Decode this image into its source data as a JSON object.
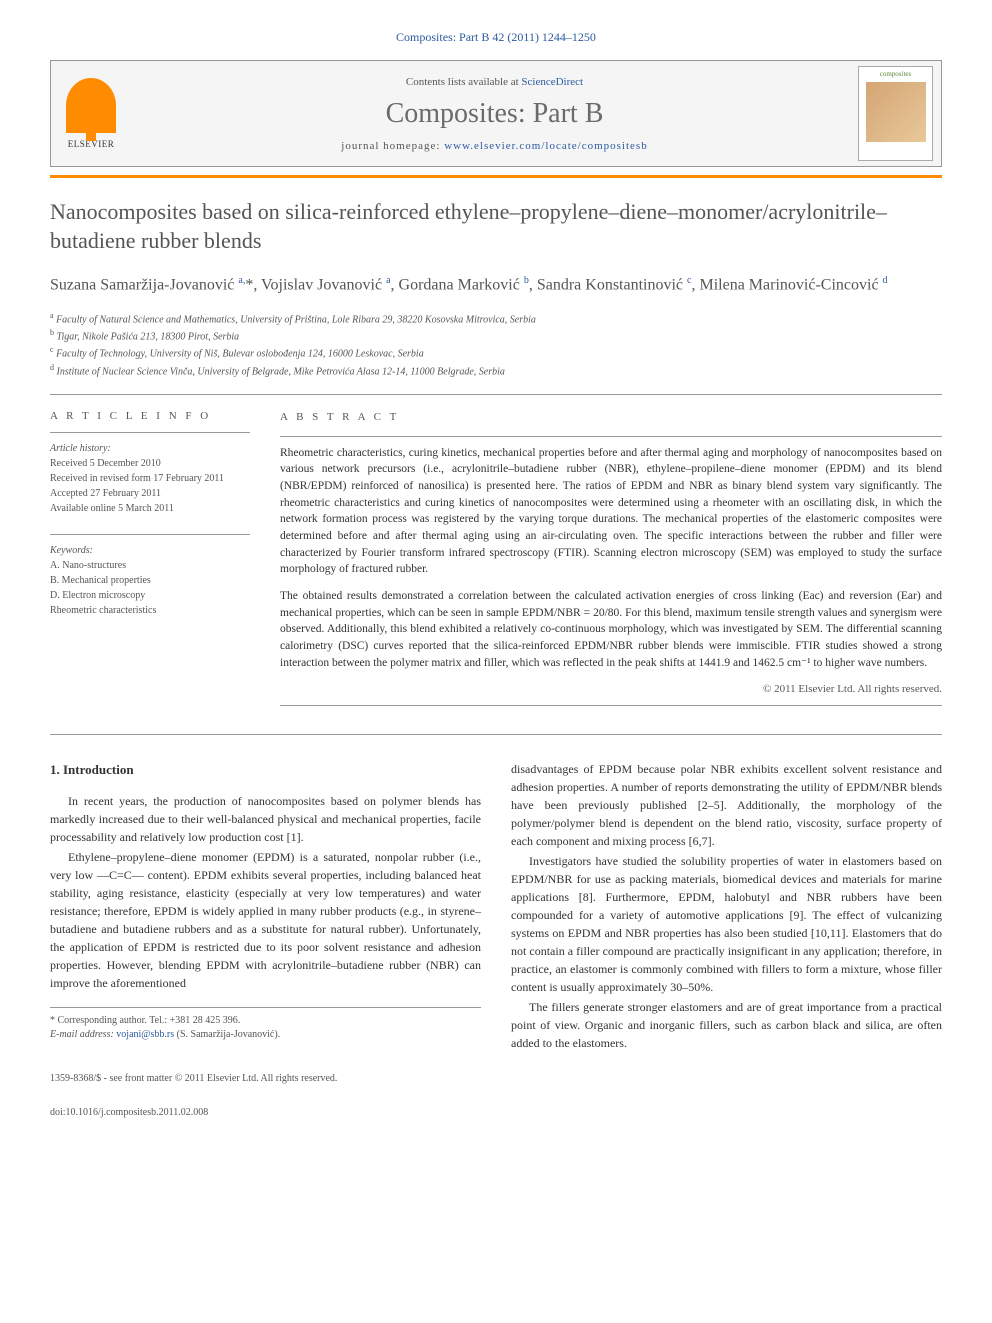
{
  "header": {
    "citation": "Composites: Part B 42 (2011) 1244–1250",
    "contents_prefix": "Contents lists available at ",
    "contents_link": "ScienceDirect",
    "journal_name": "Composites: Part B",
    "homepage_prefix": "journal homepage: ",
    "homepage_url": "www.elsevier.com/locate/compositesb",
    "publisher": "ELSEVIER",
    "cover_label": "composites"
  },
  "article": {
    "title": "Nanocomposites based on silica-reinforced ethylene–propylene–diene–monomer/acrylonitrile–butadiene rubber blends",
    "authors_html": "Suzana Samaržija-Jovanović <sup>a,</sup>*, Vojislav Jovanović <sup>a</sup>, Gordana Marković <sup>b</sup>, Sandra Konstantinović <sup>c</sup>, Milena Marinović-Cincović <sup>d</sup>",
    "affiliations": [
      "a Faculty of Natural Science and Mathematics, University of Priština, Lole Ribara 29, 38220 Kosovska Mitrovica, Serbia",
      "b Tigar, Nikole Pašića 213, 18300 Pirot, Serbia",
      "c Faculty of Technology, University of Niš, Bulevar oslobođenja 124, 16000 Leskovac, Serbia",
      "d Institute of Nuclear Science Vinča, University of Belgrade, Mike Petrovića Alasa 12-14, 11000 Belgrade, Serbia"
    ]
  },
  "meta": {
    "info_heading": "A R T I C L E   I N F O",
    "history_label": "Article history:",
    "history": [
      "Received 5 December 2010",
      "Received in revised form 17 February 2011",
      "Accepted 27 February 2011",
      "Available online 5 March 2011"
    ],
    "keywords_label": "Keywords:",
    "keywords": [
      "A. Nano-structures",
      "B. Mechanical properties",
      "D. Electron microscopy",
      "Rheometric characteristics"
    ]
  },
  "abstract": {
    "heading": "A B S T R A C T",
    "para1": "Rheometric characteristics, curing kinetics, mechanical properties before and after thermal aging and morphology of nanocomposites based on various network precursors (i.e., acrylonitrile–butadiene rubber (NBR), ethylene–propilene–diene monomer (EPDM) and its blend (NBR/EPDM) reinforced of nanosilica) is presented here. The ratios of EPDM and NBR as binary blend system vary significantly. The rheometric characteristics and curing kinetics of nanocomposites were determined using a rheometer with an oscillating disk, in which the network formation process was registered by the varying torque durations. The mechanical properties of the elastomeric composites were determined before and after thermal aging using an air-circulating oven. The specific interactions between the rubber and filler were characterized by Fourier transform infrared spectroscopy (FTIR). Scanning electron microscopy (SEM) was employed to study the surface morphology of fractured rubber.",
    "para2": "The obtained results demonstrated a correlation between the calculated activation energies of cross linking (Eac) and reversion (Ear) and mechanical properties, which can be seen in sample EPDM/NBR = 20/80. For this blend, maximum tensile strength values and synergism were observed. Additionally, this blend exhibited a relatively co-continuous morphology, which was investigated by SEM. The differential scanning calorimetry (DSC) curves reported that the silica-reinforced EPDM/NBR rubber blends were immiscible. FTIR studies showed a strong interaction between the polymer matrix and filler, which was reflected in the peak shifts at 1441.9 and 1462.5 cm⁻¹ to higher wave numbers.",
    "copyright": "© 2011 Elsevier Ltd. All rights reserved."
  },
  "body": {
    "section1_heading": "1. Introduction",
    "p1": "In recent years, the production of nanocomposites based on polymer blends has markedly increased due to their well-balanced physical and mechanical properties, facile processability and relatively low production cost [1].",
    "p2": "Ethylene–propylene–diene monomer (EPDM) is a saturated, nonpolar rubber (i.e., very low —C=C— content). EPDM exhibits several properties, including balanced heat stability, aging resistance, elasticity (especially at very low temperatures) and water resistance; therefore, EPDM is widely applied in many rubber products (e.g., in styrene–butadiene and butadiene rubbers and as a substitute for natural rubber). Unfortunately, the application of EPDM is restricted due to its poor solvent resistance and adhesion properties. However, blending EPDM with acrylonitrile–butadiene rubber (NBR) can improve the aforementioned",
    "p3": "disadvantages of EPDM because polar NBR exhibits excellent solvent resistance and adhesion properties. A number of reports demonstrating the utility of EPDM/NBR blends have been previously published [2–5]. Additionally, the morphology of the polymer/polymer blend is dependent on the blend ratio, viscosity, surface property of each component and mixing process [6,7].",
    "p4": "Investigators have studied the solubility properties of water in elastomers based on EPDM/NBR for use as packing materials, biomedical devices and materials for marine applications [8]. Furthermore, EPDM, halobutyl and NBR rubbers have been compounded for a variety of automotive applications [9]. The effect of vulcanizing systems on EPDM and NBR properties has also been studied [10,11]. Elastomers that do not contain a filler compound are practically insignificant in any application; therefore, in practice, an elastomer is commonly combined with fillers to form a mixture, whose filler content is usually approximately 30–50%.",
    "p5": "The fillers generate stronger elastomers and are of great importance from a practical point of view. Organic and inorganic fillers, such as carbon black and silica, are often added to the elastomers."
  },
  "footnote": {
    "corresponding": "* Corresponding author. Tel.: +381 28 425 396.",
    "email_label": "E-mail address:",
    "email": "vojani@sbb.rs",
    "email_owner": "(S. Samaržija-Jovanović)."
  },
  "footer": {
    "issn": "1359-8368/$ - see front matter © 2011 Elsevier Ltd. All rights reserved.",
    "doi": "doi:10.1016/j.compositesb.2011.02.008"
  },
  "colors": {
    "link": "#2c5aa0",
    "orange": "#ff8c00",
    "grey_text": "#555555",
    "border": "#999999"
  }
}
